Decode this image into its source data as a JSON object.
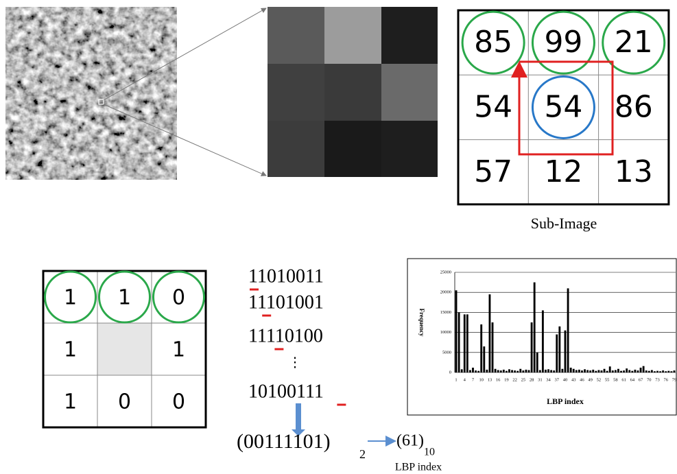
{
  "sub_image": {
    "rows": [
      [
        85,
        99,
        21
      ],
      [
        54,
        54,
        86
      ],
      [
        57,
        12,
        13
      ]
    ],
    "caption": "Sub-Image"
  },
  "binary": {
    "rows": [
      [
        1,
        1,
        0
      ],
      [
        1,
        null,
        1
      ],
      [
        1,
        0,
        0
      ]
    ]
  },
  "codes": [
    "11010011",
    "11101001",
    "11110100",
    "⋮",
    "10100111"
  ],
  "result": {
    "binary": "(00111101)",
    "binary_base": "2",
    "decimal": "(61)",
    "decimal_base": "10",
    "label": "LBP index"
  },
  "chart_data": {
    "type": "bar",
    "y_label": "Frequency",
    "x_label": "LBP index",
    "color": "#000000",
    "grid": true,
    "ylim": [
      0,
      25000
    ],
    "yticks": [
      0,
      5000,
      10000,
      15000,
      20000,
      25000
    ],
    "categories": [
      "1",
      null,
      null,
      "4",
      null,
      null,
      "7",
      null,
      null,
      "10",
      null,
      null,
      "13",
      null,
      null,
      "16",
      null,
      null,
      "19",
      null,
      null,
      "22",
      null,
      null,
      "25",
      null,
      null,
      "28",
      null,
      null,
      "31",
      null,
      null,
      "34",
      null,
      null,
      "37",
      null,
      null,
      "40",
      null,
      null,
      "43",
      null,
      null,
      "46",
      null,
      null,
      "49",
      null,
      null,
      "52",
      null,
      null,
      "55",
      null,
      null,
      "58",
      null,
      null,
      "61",
      null,
      null,
      "64",
      null,
      null,
      "67",
      null,
      null,
      "70",
      null,
      null,
      "73",
      null,
      null,
      "76",
      null,
      null,
      "79"
    ],
    "values": [
      20500,
      15000,
      800,
      14500,
      14500,
      600,
      1200,
      500,
      400,
      12000,
      6500,
      700,
      19500,
      12500,
      900,
      600,
      500,
      700,
      400,
      800,
      600,
      500,
      400,
      900,
      500,
      700,
      600,
      12500,
      22500,
      5000,
      600,
      15500,
      700,
      800,
      600,
      500,
      9500,
      11500,
      900,
      10500,
      21000,
      1200,
      900,
      600,
      700,
      500,
      800,
      600,
      500,
      700,
      400,
      600,
      500,
      900,
      400,
      1500,
      500,
      600,
      900,
      400,
      500,
      1000,
      600,
      400,
      700,
      500,
      1200,
      1600,
      500,
      400,
      600,
      300,
      400,
      300,
      500,
      300,
      400,
      300,
      500
    ]
  }
}
